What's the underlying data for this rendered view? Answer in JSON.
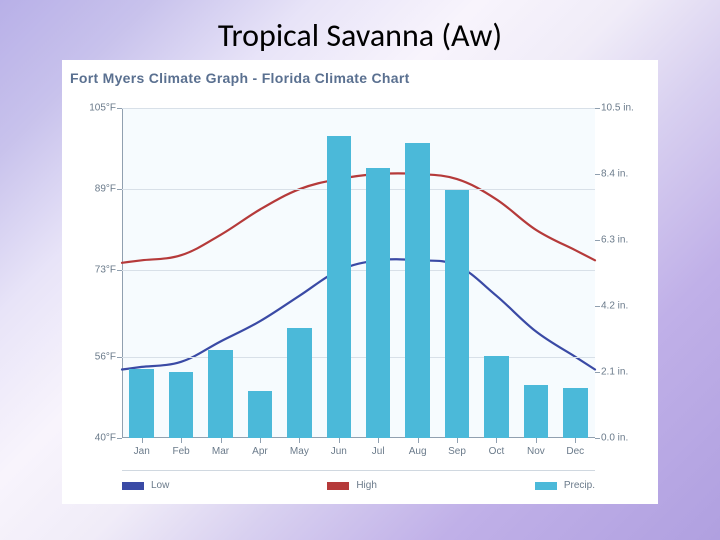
{
  "slide": {
    "title": "Tropical Savanna (Aw)",
    "title_fontsize": 32,
    "title_color": "#000000",
    "gradient_colors": [
      "#b8b0e8",
      "#c8c2ec",
      "#e8e4f8",
      "#f8f4fc",
      "#f0ecf8",
      "#d8d0f0",
      "#c0b0e8",
      "#b0a0e0"
    ]
  },
  "chart": {
    "type": "climograph",
    "title": "Fort Myers Climate Graph - Florida Climate Chart",
    "title_color": "#5a7090",
    "title_fontsize": 14,
    "background_color": "#ffffff",
    "plot_background_color": "#f6fbfe",
    "axis_color": "#90a0b0",
    "grid_color": "#d8e0e8",
    "axis_label_color": "#6a7a8a",
    "axis_label_fontsize": 10,
    "months": [
      "Jan",
      "Feb",
      "Mar",
      "Apr",
      "May",
      "Jun",
      "Jul",
      "Aug",
      "Sep",
      "Oct",
      "Nov",
      "Dec"
    ],
    "y_left": {
      "unit": "°F",
      "min": 40,
      "max": 105,
      "ticks": [
        40,
        56,
        73,
        89,
        105
      ],
      "tick_labels": [
        "40°F",
        "56°F",
        "73°F",
        "89°F",
        "105°F"
      ]
    },
    "y_right": {
      "unit": "in.",
      "min": 0.0,
      "max": 10.5,
      "ticks": [
        0.0,
        2.1,
        4.2,
        6.3,
        8.4,
        10.5
      ],
      "tick_labels": [
        "0.0 in.",
        "2.1 in.",
        "4.2 in.",
        "6.3 in.",
        "8.4 in.",
        "10.5 in."
      ]
    },
    "series": {
      "precip": {
        "label": "Precip.",
        "color": "#4bb9d9",
        "type": "bar",
        "bar_width_ratio": 0.62,
        "values": [
          2.2,
          2.1,
          2.8,
          1.5,
          3.5,
          9.6,
          8.6,
          9.4,
          7.9,
          2.6,
          1.7,
          1.6
        ]
      },
      "high": {
        "label": "High",
        "color": "#b53a3a",
        "type": "line",
        "line_width": 2.2,
        "values": [
          75,
          76,
          80,
          85,
          89,
          91,
          92,
          92,
          91,
          87,
          81,
          77
        ]
      },
      "low": {
        "label": "Low",
        "color": "#3a4aa5",
        "type": "line",
        "line_width": 2.2,
        "values": [
          54,
          55,
          59,
          63,
          68,
          73,
          75,
          75,
          74,
          68,
          61,
          56
        ]
      }
    },
    "legend": {
      "items": [
        {
          "key": "low",
          "label": "Low",
          "color": "#3a4aa5"
        },
        {
          "key": "high",
          "label": "High",
          "color": "#b53a3a"
        },
        {
          "key": "precip",
          "label": "Precip.",
          "color": "#4bb9d9"
        }
      ],
      "border_top_color": "#d0d8e0",
      "fontsize": 10,
      "text_color": "#6a7a8a"
    }
  }
}
